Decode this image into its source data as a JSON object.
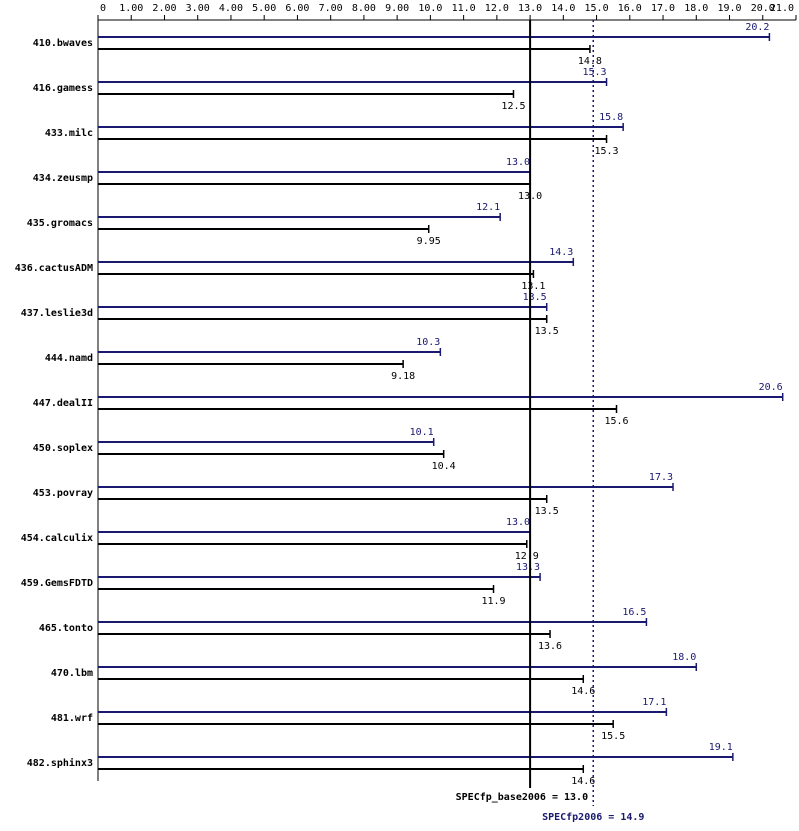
{
  "chart_data": {
    "type": "bar",
    "orientation": "horizontal",
    "categories": [
      "410.bwaves",
      "416.gamess",
      "433.milc",
      "434.zeusmp",
      "435.gromacs",
      "436.cactusADM",
      "437.leslie3d",
      "444.namd",
      "447.dealII",
      "450.soplex",
      "453.povray",
      "454.calculix",
      "459.GemsFDTD",
      "465.tonto",
      "470.lbm",
      "481.wrf",
      "482.sphinx3"
    ],
    "series": [
      {
        "color": "#191970",
        "values": [
          20.2,
          15.3,
          15.8,
          13.0,
          12.1,
          14.3,
          13.5,
          10.3,
          20.6,
          10.1,
          17.3,
          13.0,
          13.3,
          16.5,
          18.0,
          17.1,
          19.1
        ],
        "value_labels": [
          "20.2",
          "15.3",
          "15.8",
          "13.0",
          "12.1",
          "14.3",
          "13.5",
          "10.3",
          "20.6",
          "10.1",
          "17.3",
          "13.0",
          "13.3",
          "16.5",
          "18.0",
          "17.1",
          "19.1"
        ]
      },
      {
        "color": "#000000",
        "values": [
          14.8,
          12.5,
          15.3,
          13.0,
          9.95,
          13.1,
          13.5,
          9.18,
          15.6,
          10.4,
          13.5,
          12.9,
          11.9,
          13.6,
          14.6,
          15.5,
          14.6
        ],
        "value_labels": [
          "14.8",
          "12.5",
          "15.3",
          "13.0",
          "9.95",
          "13.1",
          "13.5",
          "9.18",
          "15.6",
          "10.4",
          "13.5",
          "12.9",
          "11.9",
          "13.6",
          "14.6",
          "15.5",
          "14.6"
        ]
      }
    ],
    "xlim": [
      0,
      21
    ],
    "xticks": [
      0,
      {
        "value": 1,
        "label": "1.00"
      },
      {
        "value": 2,
        "label": "2.00"
      },
      {
        "value": 3,
        "label": "3.00"
      },
      {
        "value": 4,
        "label": "4.00"
      },
      {
        "value": 5,
        "label": "5.00"
      },
      {
        "value": 6,
        "label": "6.00"
      },
      {
        "value": 7,
        "label": "7.00"
      },
      {
        "value": 8,
        "label": "8.00"
      },
      {
        "value": 9,
        "label": "9.00"
      },
      {
        "value": 10,
        "label": "10.0"
      },
      {
        "value": 11,
        "label": "11.0"
      },
      {
        "value": 12,
        "label": "12.0"
      },
      {
        "value": 13,
        "label": "13.0"
      },
      {
        "value": 14,
        "label": "14.0"
      },
      {
        "value": 15,
        "label": "15.0"
      },
      {
        "value": 16,
        "label": "16.0"
      },
      {
        "value": 17,
        "label": "17.0"
      },
      {
        "value": 18,
        "label": "18.0"
      },
      {
        "value": 19,
        "label": "19.0"
      },
      {
        "value": 20,
        "label": "20.0"
      },
      {
        "value": 21,
        "label": "21.0"
      }
    ],
    "reference_lines": [
      {
        "value": 13.0,
        "label": "SPECfp_base2006 = 13.0",
        "color": "#000000",
        "dashed": false
      },
      {
        "value": 14.9,
        "label": "SPECfp2006 = 14.9",
        "color": "#191970",
        "dashed": true
      }
    ]
  }
}
